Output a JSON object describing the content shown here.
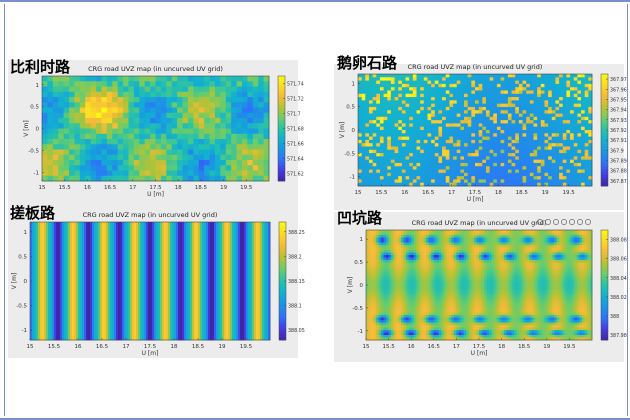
{
  "labels": {
    "tl": "比利时路",
    "bl": "搓板路",
    "tr": "鹅卵石路",
    "br": "凹坑路"
  },
  "toolbar_icons": [
    "pin-icon",
    "brush-icon",
    "zoom-in-icon",
    "zoom-out-icon",
    "pan-icon",
    "home-icon",
    "save-icon"
  ],
  "chart_data": [
    {
      "id": "belgian",
      "type": "heatmap",
      "title": "CRG road UVZ map (in uncurved UV grid)",
      "xlabel": "U [m]",
      "ylabel": "V [m]",
      "xlim": [
        15,
        20
      ],
      "ylim": [
        -1.2,
        1.2
      ],
      "xticks": [
        "15",
        "15.5",
        "16",
        "16.5",
        "17",
        "17.5",
        "18",
        "18.5",
        "19",
        "19.5"
      ],
      "yticks": [
        "1",
        "0.5",
        "0",
        "-0.5",
        "-1"
      ],
      "colorbar_ticks": [
        "571.74",
        "571.72",
        "571.7",
        "571.68",
        "571.66",
        "571.64",
        "571.62"
      ],
      "colorbar_range": [
        571.61,
        571.75
      ],
      "grid": false
    },
    {
      "id": "washboard",
      "type": "heatmap",
      "title": "CRG road UVZ map (in uncurved UV grid)",
      "xlabel": "U [m]",
      "ylabel": "V [m]",
      "xlim": [
        15,
        20
      ],
      "ylim": [
        -1.2,
        1.2
      ],
      "xticks": [
        "15",
        "15.5",
        "16",
        "16.5",
        "17",
        "17.5",
        "18",
        "18.5",
        "19",
        "19.5"
      ],
      "yticks": [
        "1",
        "0.5",
        "0",
        "-0.5",
        "-1"
      ],
      "colorbar_ticks": [
        "388.25",
        "388.2",
        "388.15",
        "388.1",
        "388.05"
      ],
      "colorbar_range": [
        388.03,
        388.27
      ],
      "grid": false
    },
    {
      "id": "cobblestone",
      "type": "heatmap",
      "title": "CRG road UVZ map (in uncurved UV grid)",
      "xlabel": "U [m]",
      "ylabel": "V [m]",
      "xlim": [
        15,
        20
      ],
      "ylim": [
        -1.2,
        1.2
      ],
      "xticks": [
        "15",
        "15.5",
        "16",
        "16.5",
        "17",
        "17.5",
        "18",
        "18.5",
        "19",
        "19.5"
      ],
      "yticks": [
        "1",
        "0.5",
        "0",
        "-0.5",
        "-1"
      ],
      "colorbar_ticks": [
        "367.97",
        "367.96",
        "367.95",
        "367.94",
        "367.93",
        "367.92",
        "367.91",
        "367.9",
        "367.89",
        "367.88",
        "367.87"
      ],
      "colorbar_range": [
        367.865,
        367.975
      ],
      "grid": false
    },
    {
      "id": "pothole",
      "type": "heatmap",
      "title": "CRG road UVZ map (in uncurved UV grid)",
      "xlabel": "U [m]",
      "ylabel": "V [m]",
      "xlim": [
        15,
        20
      ],
      "ylim": [
        -1.2,
        1.2
      ],
      "xticks": [
        "15",
        "15.5",
        "16",
        "16.5",
        "17",
        "17.5",
        "18",
        "18.5",
        "19",
        "19.5"
      ],
      "yticks": [
        "1",
        "0.5",
        "0",
        "-0.5",
        "-1"
      ],
      "colorbar_ticks": [
        "388.08",
        "388.06",
        "388.04",
        "388.02",
        "388",
        "387.98"
      ],
      "colorbar_range": [
        387.975,
        388.09
      ],
      "grid": false
    }
  ]
}
